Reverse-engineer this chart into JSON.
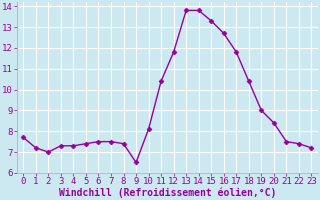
{
  "x": [
    0,
    1,
    2,
    3,
    4,
    5,
    6,
    7,
    8,
    9,
    10,
    11,
    12,
    13,
    14,
    15,
    16,
    17,
    18,
    19,
    20,
    21,
    22,
    23
  ],
  "y": [
    7.7,
    7.2,
    7.0,
    7.3,
    7.3,
    7.4,
    7.5,
    7.5,
    7.4,
    6.5,
    8.1,
    10.4,
    11.8,
    13.8,
    13.8,
    13.3,
    12.7,
    11.8,
    10.4,
    9.0,
    8.4,
    7.5,
    7.4,
    7.2
  ],
  "line_color": "#990099",
  "marker": "D",
  "marker_size": 2.5,
  "line_width": 1.0,
  "background_color": "#cce8f0",
  "grid_color": "#ffffff",
  "xlabel": "Windchill (Refroidissement éolien,°C)",
  "xlabel_fontsize": 7,
  "tick_fontsize": 6.5,
  "xlim": [
    -0.5,
    23.5
  ],
  "ylim": [
    6,
    14.2
  ],
  "yticks": [
    6,
    7,
    8,
    9,
    10,
    11,
    12,
    13,
    14
  ],
  "xticks": [
    0,
    1,
    2,
    3,
    4,
    5,
    6,
    7,
    8,
    9,
    10,
    11,
    12,
    13,
    14,
    15,
    16,
    17,
    18,
    19,
    20,
    21,
    22,
    23
  ],
  "tick_color": "#990099",
  "spine_color": "#aaaaaa"
}
